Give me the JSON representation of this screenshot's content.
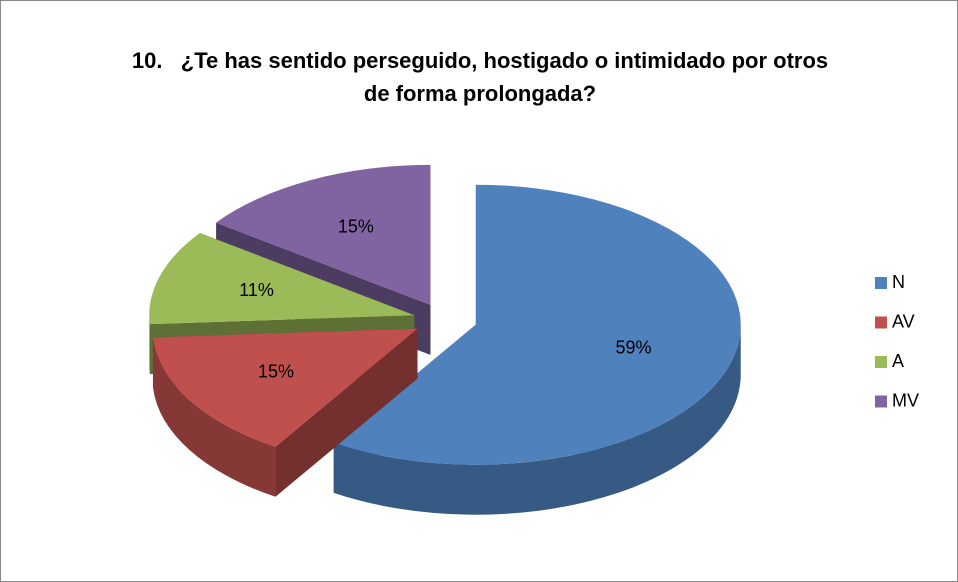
{
  "chart_data": {
    "type": "pie",
    "title": "10.   ¿Te has sentido perseguido, hostigado o intimidado por otros de forma prolongada?",
    "categories": [
      "N",
      "AV",
      "A",
      "MV"
    ],
    "values": [
      59,
      15,
      11,
      15
    ],
    "value_labels": [
      "59%",
      "15%",
      "11%",
      "15%"
    ],
    "colors": [
      "#4f81bd",
      "#c0504d",
      "#9bbb59",
      "#8064a2"
    ],
    "legend": "right"
  }
}
